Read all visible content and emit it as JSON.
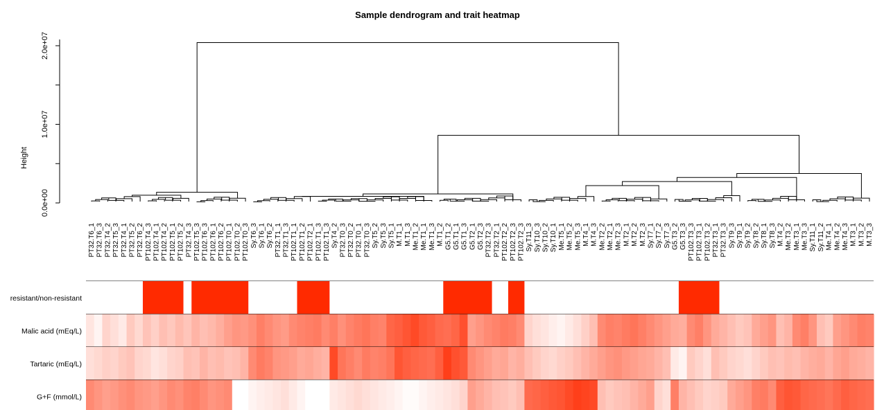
{
  "chart_data": {
    "type": "heatmap",
    "title": "Sample dendrogram and trait heatmap",
    "ylabel": "Height",
    "ylim": [
      0,
      21000000
    ],
    "yticks": [
      {
        "value": 0,
        "label": "0.0e+00"
      },
      {
        "value": 10000000,
        "label": "1.0e+07"
      },
      {
        "value": 20000000,
        "label": "2.0e+07"
      }
    ],
    "samples": [
      "PT32.T6_1",
      "PT32.T6_3",
      "PT32.T4_2",
      "PT32.T5_3",
      "PT32.T4_1",
      "PT32.T5_2",
      "PT32.T6_2",
      "PT102.T4_3",
      "PT102.T4_1",
      "PT102.T4_2",
      "PT102.T5_1",
      "PT102.T5_2",
      "PT32.T4_3",
      "PT102.T5_3",
      "PT102.T6_3",
      "PT102.T6_1",
      "PT102.T6_2",
      "PT102.T0_1",
      "PT102.T0_2",
      "PT102.T0_3",
      "Sy.T6_3",
      "Sy.T6_1",
      "Sy.T6_2",
      "PT32.T1_1",
      "PT32.T1_3",
      "PT102.T1_1",
      "PT102.T1_2",
      "PT102.T2_1",
      "PT102.T1_3",
      "PT102.T1_3",
      "Sy.T4_2",
      "PT32.T0_3",
      "PT32.T0_2",
      "PT32.T0_1",
      "PT32.T0_3",
      "Sy.T5_2",
      "Sy.T5_3",
      "Sy.T5_1",
      "M.T1_1",
      "M.T1_3",
      "Me.T1_2",
      "Me.T1_1",
      "Me.T1_3",
      "M.T1_2",
      "G5.T1_2",
      "G5.T1_1",
      "G5.T1_3",
      "G5.T2_1",
      "G5.T2_3",
      "PT32.T2_3",
      "PT32.T2_1",
      "PT102.T2_2",
      "PT102.T2_3",
      "PT102.T2_3",
      "Sy.T11_3",
      "Sy.T10_3",
      "Sy.T10_2",
      "Sy.T10_1",
      "Me.T5_1",
      "Me.T5_2",
      "Me.T5_3",
      "M.T4_1",
      "M.T4_3",
      "Me.T2_2",
      "Me.T2_1",
      "Me.T2_3",
      "M.T2_1",
      "M.T2_2",
      "M.T2_3",
      "Sy.T7_1",
      "Sy.T7_2",
      "Sy.T7_3",
      "G5.T3_2",
      "G5.T3_3",
      "PT102.T3_3",
      "PT102.T3_1",
      "PT102.T3_2",
      "PT32.T3_1",
      "PT32.T3_3",
      "Sy.T9_3",
      "Sy.T9_1",
      "Sy.T9_2",
      "Sy.T8_2",
      "Sy.T8_1",
      "Sy.T8_3",
      "M.T4_2",
      "Me.T3_2",
      "Me.T3_1",
      "Me.T3_3",
      "Sy.T11_1",
      "Sy.T11_2",
      "Me.T4_1",
      "Me.T4_2",
      "Me.T4_3",
      "M.T3_1",
      "M.T3_2",
      "M.T3_3"
    ],
    "dendrogram": {
      "clusters": [
        {
          "name": "left",
          "height": 1350000,
          "count": 20,
          "groups": [
            7,
            6,
            7
          ]
        },
        {
          "name": "middle",
          "height": 1150000,
          "count": 34,
          "groups": [
            8,
            15,
            11
          ]
        },
        {
          "name": "right",
          "height": 3750000,
          "count": 43,
          "groups": [
            9,
            9,
            9,
            8,
            8
          ]
        }
      ],
      "joins": [
        {
          "between": [
            "middle",
            "right"
          ],
          "height": 8600000
        },
        {
          "between": [
            "left",
            "middle+right"
          ],
          "height": 20400000
        }
      ]
    },
    "traits": [
      {
        "name": "resistant/non-resistant",
        "values": [
          0,
          0,
          0,
          0,
          0,
          0,
          0,
          1,
          1,
          1,
          1,
          1,
          0,
          1,
          1,
          1,
          1,
          1,
          1,
          1,
          0,
          0,
          0,
          0,
          0,
          0,
          1,
          1,
          1,
          1,
          0,
          0,
          0,
          0,
          0,
          0,
          0,
          0,
          0,
          0,
          0,
          0,
          0,
          0,
          1,
          1,
          1,
          1,
          1,
          1,
          0,
          0,
          1,
          1,
          0,
          0,
          0,
          0,
          0,
          0,
          0,
          0,
          0,
          0,
          0,
          0,
          0,
          0,
          0,
          0,
          0,
          0,
          0,
          1,
          1,
          1,
          1,
          1,
          0,
          0,
          0,
          0,
          0,
          0,
          0,
          0,
          0,
          0,
          0,
          0,
          0,
          0,
          0,
          0,
          0,
          0,
          0
        ]
      },
      {
        "name": "Malic acid (mEq/L)",
        "values": [
          0.12,
          0.05,
          0.2,
          0.15,
          0.1,
          0.25,
          0.18,
          0.28,
          0.22,
          0.3,
          0.26,
          0.32,
          0.27,
          0.35,
          0.3,
          0.33,
          0.38,
          0.45,
          0.5,
          0.48,
          0.52,
          0.6,
          0.55,
          0.5,
          0.47,
          0.55,
          0.58,
          0.6,
          0.62,
          0.55,
          0.6,
          0.52,
          0.58,
          0.62,
          0.65,
          0.6,
          0.58,
          0.72,
          0.75,
          0.8,
          0.85,
          0.78,
          0.75,
          0.7,
          0.68,
          0.72,
          0.82,
          0.45,
          0.5,
          0.55,
          0.58,
          0.62,
          0.6,
          0.55,
          0.2,
          0.15,
          0.12,
          0.08,
          0.05,
          0.1,
          0.15,
          0.22,
          0.3,
          0.55,
          0.6,
          0.58,
          0.62,
          0.65,
          0.6,
          0.55,
          0.5,
          0.45,
          0.4,
          0.38,
          0.55,
          0.6,
          0.5,
          0.4,
          0.35,
          0.3,
          0.25,
          0.28,
          0.4,
          0.45,
          0.5,
          0.3,
          0.35,
          0.55,
          0.6,
          0.5,
          0.3,
          0.25,
          0.45,
          0.5,
          0.55,
          0.6,
          0.58
        ]
      },
      {
        "name": "Tartaric (mEq/L)",
        "values": [
          0.15,
          0.18,
          0.22,
          0.2,
          0.25,
          0.28,
          0.2,
          0.18,
          0.12,
          0.15,
          0.2,
          0.22,
          0.3,
          0.28,
          0.35,
          0.3,
          0.32,
          0.28,
          0.3,
          0.35,
          0.55,
          0.62,
          0.58,
          0.5,
          0.48,
          0.45,
          0.4,
          0.42,
          0.38,
          0.35,
          0.85,
          0.65,
          0.6,
          0.55,
          0.62,
          0.58,
          0.6,
          0.65,
          0.8,
          0.75,
          0.72,
          0.7,
          0.68,
          0.75,
          0.9,
          0.82,
          0.78,
          0.55,
          0.5,
          0.45,
          0.4,
          0.42,
          0.35,
          0.38,
          0.3,
          0.25,
          0.2,
          0.18,
          0.22,
          0.25,
          0.3,
          0.35,
          0.4,
          0.45,
          0.5,
          0.52,
          0.48,
          0.45,
          0.42,
          0.4,
          0.35,
          0.3,
          0.1,
          0.05,
          0.25,
          0.2,
          0.15,
          0.3,
          0.25,
          0.2,
          0.18,
          0.15,
          0.2,
          0.25,
          0.3,
          0.28,
          0.32,
          0.3,
          0.35,
          0.38,
          0.4,
          0.35,
          0.42,
          0.45,
          0.4,
          0.38,
          0.35
        ]
      },
      {
        "name": "G+F (mmol/L)",
        "values": [
          0.55,
          0.5,
          0.45,
          0.48,
          0.52,
          0.55,
          0.5,
          0.48,
          0.45,
          0.5,
          0.55,
          0.52,
          0.58,
          0.6,
          0.55,
          0.5,
          0.52,
          0.55,
          0.0,
          0.0,
          0.05,
          0.08,
          0.1,
          0.12,
          0.15,
          0.1,
          0.05,
          0.0,
          0.0,
          0.0,
          0.1,
          0.12,
          0.15,
          0.18,
          0.15,
          0.12,
          0.1,
          0.08,
          0.05,
          0.02,
          0.02,
          0.05,
          0.08,
          0.1,
          0.12,
          0.15,
          0.2,
          0.45,
          0.4,
          0.35,
          0.3,
          0.28,
          0.25,
          0.3,
          0.7,
          0.72,
          0.75,
          0.78,
          0.8,
          0.85,
          0.9,
          0.88,
          0.85,
          0.3,
          0.25,
          0.28,
          0.3,
          0.35,
          0.4,
          0.45,
          0.2,
          0.15,
          0.6,
          0.35,
          0.3,
          0.25,
          0.2,
          0.22,
          0.25,
          0.4,
          0.45,
          0.5,
          0.6,
          0.62,
          0.55,
          0.75,
          0.8,
          0.78,
          0.72,
          0.7,
          0.68,
          0.65,
          0.7,
          0.75,
          0.72,
          0.7,
          0.68
        ]
      }
    ],
    "colors": {
      "low": "#ffffff",
      "high": "#ff2a00",
      "line": "#000000"
    }
  }
}
